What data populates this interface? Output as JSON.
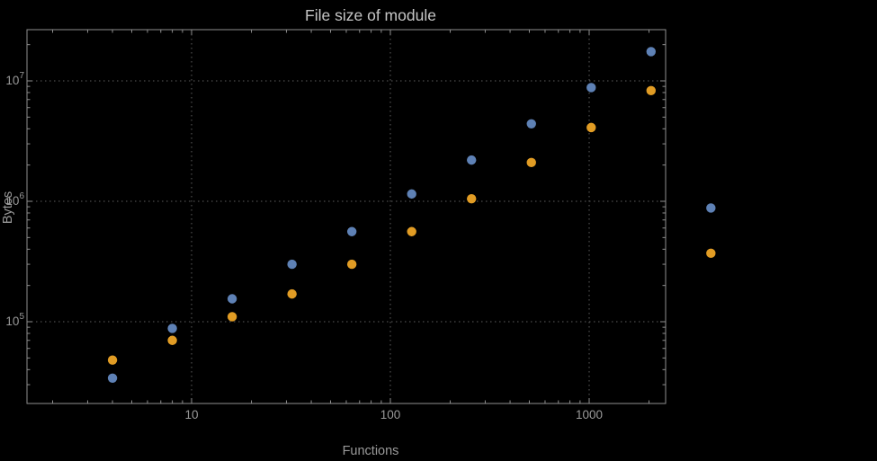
{
  "title": "File size of module",
  "colors": {
    "background": "#000000",
    "frame": "#8f8f8f",
    "gridline": "#5e5e5e",
    "title_text": "#c6c6c6",
    "label_text": "#9a9a9a",
    "series_blue": "#5e81b5",
    "series_orange": "#e19c24"
  },
  "chart_data": {
    "type": "scatter",
    "title": "File size of module",
    "xlabel": "Functions",
    "ylabel": "Bytes",
    "x_scale": "log",
    "y_scale": "log",
    "grid": "dotted, at decades only",
    "legend": "none",
    "xlim": [
      1.5,
      2400
    ],
    "ylim": [
      21000,
      27000000
    ],
    "x_ticks": [
      10,
      100,
      1000
    ],
    "x_tick_labels": [
      "10",
      "100",
      "1000"
    ],
    "y_ticks": [
      100000,
      1000000,
      10000000
    ],
    "y_tick_labels": [
      "10^5",
      "10^6",
      "10^7"
    ],
    "x": [
      4,
      8,
      16,
      32,
      64,
      128,
      256,
      512,
      1024,
      2048,
      4096
    ],
    "series": [
      {
        "name": "blue",
        "color": "#5e81b5",
        "values": [
          34000,
          88000,
          155000,
          300000,
          560000,
          1150000,
          2200000,
          4400000,
          8800000,
          17500000,
          880000
        ]
      },
      {
        "name": "orange",
        "color": "#e19c24",
        "values": [
          48000,
          70000,
          110000,
          170000,
          300000,
          560000,
          1050000,
          2100000,
          4100000,
          8300000,
          370000
        ]
      }
    ]
  }
}
